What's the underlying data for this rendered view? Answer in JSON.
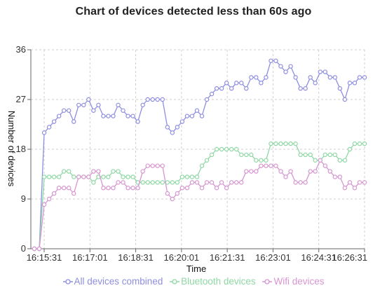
{
  "title": "Chart of devices detected less than 60s ago",
  "chart_data": {
    "type": "line",
    "title": "Chart of devices detected less than 60s ago",
    "xlabel": "Time",
    "ylabel": "Number of devices",
    "ylim": [
      0,
      36
    ],
    "yticks": [
      "0",
      "9",
      "18",
      "27",
      "36"
    ],
    "xticks": [
      "16:15:31",
      "16:17:01",
      "16:18:31",
      "16:20:01",
      "16:21:31",
      "16:23:01",
      "16:24:31",
      "16:26:31"
    ],
    "grid": true,
    "legend_position": "bottom",
    "series": [
      {
        "name": "All devices combined",
        "color": "#8e8ee0",
        "values": [
          0,
          0,
          21,
          22,
          23,
          24,
          25,
          25,
          23,
          26,
          26,
          27,
          25,
          26,
          24,
          24,
          24,
          26,
          25,
          24,
          24,
          23,
          26,
          27,
          27,
          27,
          27,
          22,
          21,
          22,
          23,
          24,
          24,
          25,
          24,
          27,
          28,
          29,
          29,
          30,
          29,
          30,
          30,
          29,
          31,
          31,
          30,
          31,
          34,
          34,
          33,
          32,
          33,
          31,
          29,
          29,
          31,
          30,
          32,
          32,
          31,
          31,
          29,
          27,
          30,
          30,
          31,
          31
        ]
      },
      {
        "name": "Bluetooth devices",
        "color": "#8ed8a4",
        "values": [
          0,
          0,
          13,
          13,
          13,
          13,
          14,
          14,
          13,
          13,
          13,
          13,
          12,
          13,
          13,
          13,
          14,
          14,
          13,
          13,
          13,
          12,
          12,
          12,
          12,
          12,
          12,
          12,
          12,
          12,
          13,
          13,
          13,
          13,
          15,
          16,
          17,
          18,
          18,
          18,
          18,
          18,
          17,
          17,
          17,
          16,
          16,
          16,
          19,
          19,
          19,
          19,
          19,
          19,
          17,
          17,
          17,
          16,
          16,
          17,
          17,
          17,
          16,
          16,
          18,
          19,
          19,
          19
        ]
      },
      {
        "name": "Wifi devices",
        "color": "#d795d2",
        "values": [
          0,
          0,
          8,
          9,
          10,
          11,
          11,
          11,
          10,
          13,
          13,
          13,
          14,
          14,
          11,
          11,
          11,
          12,
          12,
          11,
          11,
          11,
          14,
          15,
          15,
          15,
          15,
          10,
          9,
          10,
          11,
          11,
          12,
          12,
          11,
          12,
          12,
          11,
          12,
          11,
          12,
          12,
          12,
          14,
          14,
          14,
          15,
          15,
          15,
          15,
          14,
          13,
          14,
          12,
          12,
          12,
          14,
          14,
          16,
          15,
          14,
          13,
          13,
          11,
          12,
          11,
          12,
          12
        ]
      }
    ]
  }
}
